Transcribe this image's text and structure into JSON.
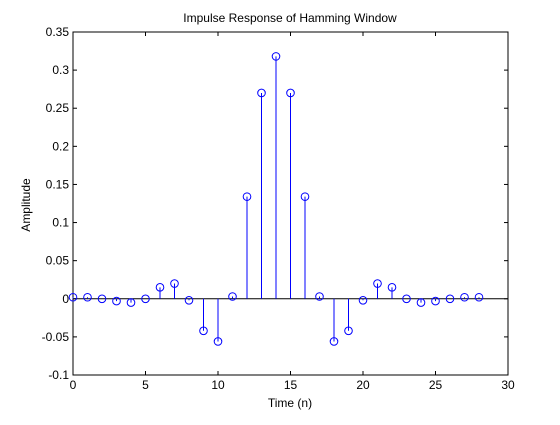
{
  "chart_data": {
    "type": "stem",
    "title": "Impulse Response of Hamming Window",
    "xlabel": "Time (n)",
    "ylabel": "Amplitude",
    "xlim": [
      0,
      30
    ],
    "ylim": [
      -0.1,
      0.35
    ],
    "xticks": [
      0,
      5,
      10,
      15,
      20,
      25,
      30
    ],
    "xtick_labels": [
      "0",
      "5",
      "10",
      "15",
      "20",
      "25",
      "30"
    ],
    "yticks": [
      -0.1,
      -0.05,
      0,
      0.05,
      0.1,
      0.15,
      0.2,
      0.25,
      0.3,
      0.35
    ],
    "ytick_labels": [
      "-0.1",
      "-0.05",
      "0",
      "0.05",
      "0.1",
      "0.15",
      "0.2",
      "0.25",
      "0.3",
      "0.35"
    ],
    "grid": false,
    "series_color": "#0000ff",
    "axis_color": "#000000",
    "x": [
      0,
      1,
      2,
      3,
      4,
      5,
      6,
      7,
      8,
      9,
      10,
      11,
      12,
      13,
      14,
      15,
      16,
      17,
      18,
      19,
      20,
      21,
      22,
      23,
      24,
      25,
      26,
      27,
      28
    ],
    "y": [
      0.002,
      0.002,
      0.0,
      -0.003,
      -0.005,
      0.0,
      0.015,
      0.02,
      -0.002,
      -0.042,
      -0.056,
      0.003,
      0.134,
      0.27,
      0.318,
      0.27,
      0.134,
      0.003,
      -0.056,
      -0.042,
      -0.002,
      0.02,
      0.015,
      0.0,
      -0.005,
      -0.003,
      0.0,
      0.002,
      0.002
    ]
  }
}
